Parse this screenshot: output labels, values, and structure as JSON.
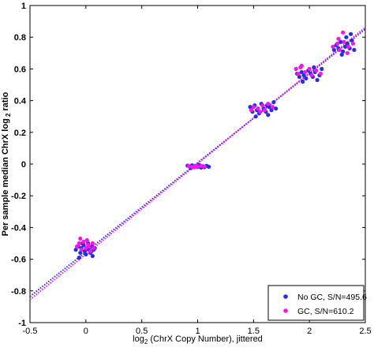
{
  "chart_data": {
    "type": "scatter",
    "title": "",
    "xlabel_main": "log",
    "xlabel_sub": "2",
    "xlabel_rest": " (ChrX Copy Number), jittered",
    "ylabel": "Per sample median ChrX log",
    "ylabel_sub": "2",
    "ylabel_rest": " ratio",
    "xlim": [
      -0.5,
      2.5
    ],
    "ylim": [
      -1,
      1
    ],
    "xticks": [
      -0.5,
      0,
      0.5,
      1,
      1.5,
      2,
      2.5
    ],
    "xtick_labels": [
      "-0.5",
      "0",
      "0.5",
      "1",
      "1.5",
      "2",
      "2.5"
    ],
    "yticks": [
      -1,
      -0.8,
      -0.6,
      -0.4,
      -0.2,
      0,
      0.2,
      0.4,
      0.6,
      0.8,
      1
    ],
    "ytick_labels": [
      "-1",
      "-0.8",
      "-0.6",
      "-0.4",
      "-0.2",
      "0",
      "0.2",
      "0.4",
      "0.6",
      "0.8",
      "1"
    ],
    "grid": false,
    "legend_position": "bottom-right",
    "series": [
      {
        "name": "No GC, S/N=495.6",
        "color": "#2b2be0",
        "fit_line": {
          "x": [
            -0.5,
            2.5
          ],
          "y": [
            -0.835,
            0.852
          ]
        },
        "points": [
          [
            -0.09,
            -0.54
          ],
          [
            -0.07,
            -0.52
          ],
          [
            -0.05,
            -0.56
          ],
          [
            -0.04,
            -0.53
          ],
          [
            -0.02,
            -0.51
          ],
          [
            -0.01,
            -0.55
          ],
          [
            0.0,
            -0.57
          ],
          [
            0.01,
            -0.53
          ],
          [
            0.02,
            -0.5
          ],
          [
            0.03,
            -0.54
          ],
          [
            0.04,
            -0.56
          ],
          [
            0.05,
            -0.52
          ],
          [
            0.06,
            -0.58
          ],
          [
            0.07,
            -0.54
          ],
          [
            0.08,
            -0.53
          ],
          [
            -0.06,
            -0.59
          ],
          [
            0.05,
            -0.55
          ],
          [
            -0.03,
            -0.5
          ],
          [
            0.91,
            -0.01
          ],
          [
            0.93,
            -0.015
          ],
          [
            0.95,
            -0.008
          ],
          [
            0.97,
            -0.02
          ],
          [
            0.99,
            -0.012
          ],
          [
            1.0,
            -0.018
          ],
          [
            1.02,
            -0.009
          ],
          [
            1.03,
            -0.022
          ],
          [
            1.05,
            -0.014
          ],
          [
            1.06,
            -0.02
          ],
          [
            1.08,
            -0.011
          ],
          [
            1.1,
            -0.017
          ],
          [
            0.94,
            -0.025
          ],
          [
            1.01,
            -0.005
          ],
          [
            1.47,
            0.36
          ],
          [
            1.49,
            0.33
          ],
          [
            1.51,
            0.37
          ],
          [
            1.53,
            0.34
          ],
          [
            1.55,
            0.32
          ],
          [
            1.57,
            0.38
          ],
          [
            1.59,
            0.35
          ],
          [
            1.61,
            0.33
          ],
          [
            1.62,
            0.37
          ],
          [
            1.64,
            0.36
          ],
          [
            1.66,
            0.34
          ],
          [
            1.68,
            0.39
          ],
          [
            1.7,
            0.35
          ],
          [
            1.52,
            0.3
          ],
          [
            1.63,
            0.31
          ],
          [
            1.89,
            0.57
          ],
          [
            1.91,
            0.55
          ],
          [
            1.93,
            0.58
          ],
          [
            1.95,
            0.56
          ],
          [
            1.97,
            0.54
          ],
          [
            1.99,
            0.59
          ],
          [
            2.01,
            0.57
          ],
          [
            2.03,
            0.55
          ],
          [
            2.05,
            0.58
          ],
          [
            2.07,
            0.53
          ],
          [
            2.09,
            0.56
          ],
          [
            2.11,
            0.6
          ],
          [
            1.94,
            0.52
          ],
          [
            2.04,
            0.61
          ],
          [
            2.22,
            0.72
          ],
          [
            2.24,
            0.75
          ],
          [
            2.26,
            0.73
          ],
          [
            2.28,
            0.77
          ],
          [
            2.3,
            0.71
          ],
          [
            2.32,
            0.74
          ],
          [
            2.34,
            0.76
          ],
          [
            2.36,
            0.73
          ],
          [
            2.38,
            0.78
          ],
          [
            2.4,
            0.72
          ],
          [
            2.33,
            0.8
          ],
          [
            2.29,
            0.69
          ],
          [
            2.37,
            0.82
          ]
        ]
      },
      {
        "name": "GC, S/N=610.2",
        "color": "#f018ea",
        "fit_line": {
          "x": [
            -0.5,
            2.5
          ],
          "y": [
            -0.855,
            0.862
          ]
        },
        "points": [
          [
            -0.08,
            -0.52
          ],
          [
            -0.06,
            -0.5
          ],
          [
            -0.04,
            -0.54
          ],
          [
            -0.02,
            -0.49
          ],
          [
            0.0,
            -0.53
          ],
          [
            0.01,
            -0.48
          ],
          [
            0.03,
            -0.52
          ],
          [
            0.04,
            -0.55
          ],
          [
            0.06,
            -0.5
          ],
          [
            0.07,
            -0.53
          ],
          [
            -0.05,
            -0.47
          ],
          [
            0.02,
            -0.51
          ],
          [
            0.92,
            -0.012
          ],
          [
            0.95,
            -0.018
          ],
          [
            0.98,
            -0.01
          ],
          [
            1.0,
            -0.015
          ],
          [
            1.03,
            -0.012
          ],
          [
            1.06,
            -0.016
          ],
          [
            0.97,
            -0.02
          ],
          [
            1.48,
            0.34
          ],
          [
            1.5,
            0.36
          ],
          [
            1.54,
            0.35
          ],
          [
            1.58,
            0.37
          ],
          [
            1.6,
            0.34
          ],
          [
            1.63,
            0.38
          ],
          [
            1.67,
            0.36
          ],
          [
            1.56,
            0.33
          ],
          [
            1.88,
            0.6
          ],
          [
            1.9,
            0.57
          ],
          [
            1.92,
            0.61
          ],
          [
            1.96,
            0.58
          ],
          [
            2.0,
            0.6
          ],
          [
            2.02,
            0.56
          ],
          [
            2.06,
            0.59
          ],
          [
            2.1,
            0.57
          ],
          [
            1.93,
            0.62
          ],
          [
            2.21,
            0.74
          ],
          [
            2.25,
            0.76
          ],
          [
            2.27,
            0.72
          ],
          [
            2.31,
            0.77
          ],
          [
            2.35,
            0.74
          ],
          [
            2.39,
            0.76
          ],
          [
            2.3,
            0.83
          ],
          [
            2.34,
            0.7
          ],
          [
            2.26,
            0.79
          ]
        ]
      }
    ]
  }
}
